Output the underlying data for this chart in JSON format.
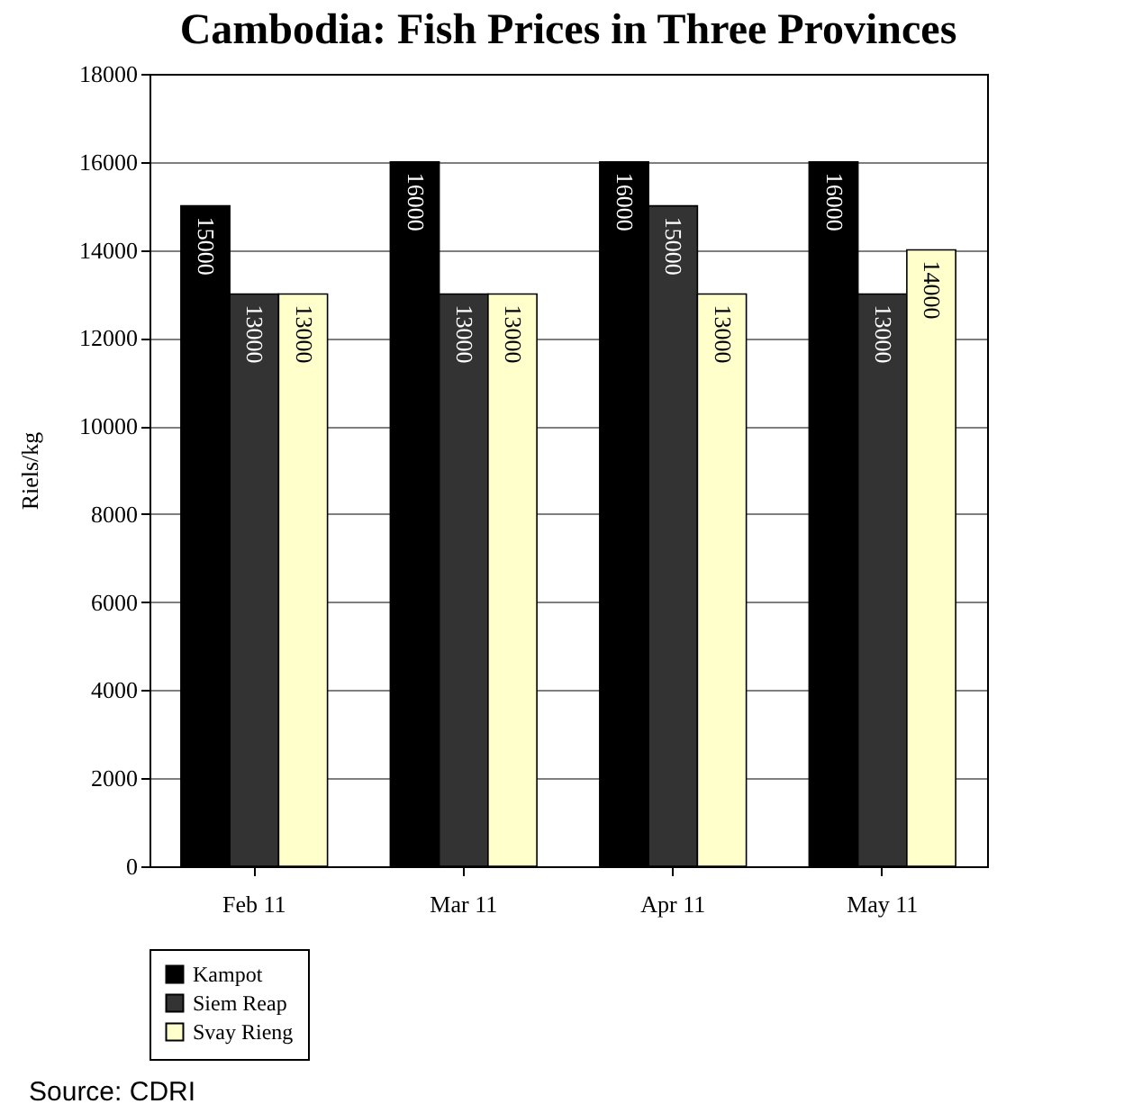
{
  "chart_data": {
    "type": "bar",
    "title": "Cambodia: Fish Prices in Three Provinces",
    "ylabel": "Riels/kg",
    "categories": [
      "Feb 11",
      "Mar 11",
      "Apr 11",
      "May 11"
    ],
    "series": [
      {
        "name": "Kampot",
        "color": "#000000",
        "values": [
          15000,
          16000,
          16000,
          16000
        ]
      },
      {
        "name": "Siem Reap",
        "color": "#333333",
        "values": [
          13000,
          13000,
          15000,
          13000
        ]
      },
      {
        "name": "Svay Rieng",
        "color": "#ffffcc",
        "values": [
          13000,
          13000,
          13000,
          14000
        ]
      }
    ],
    "ylim": [
      0,
      18000
    ],
    "yticks": [
      0,
      2000,
      4000,
      6000,
      8000,
      10000,
      12000,
      14000,
      16000,
      18000
    ],
    "grid": "y",
    "legend": "bottom",
    "data_labels": true,
    "annotations": [
      "Source: CDRI"
    ]
  }
}
